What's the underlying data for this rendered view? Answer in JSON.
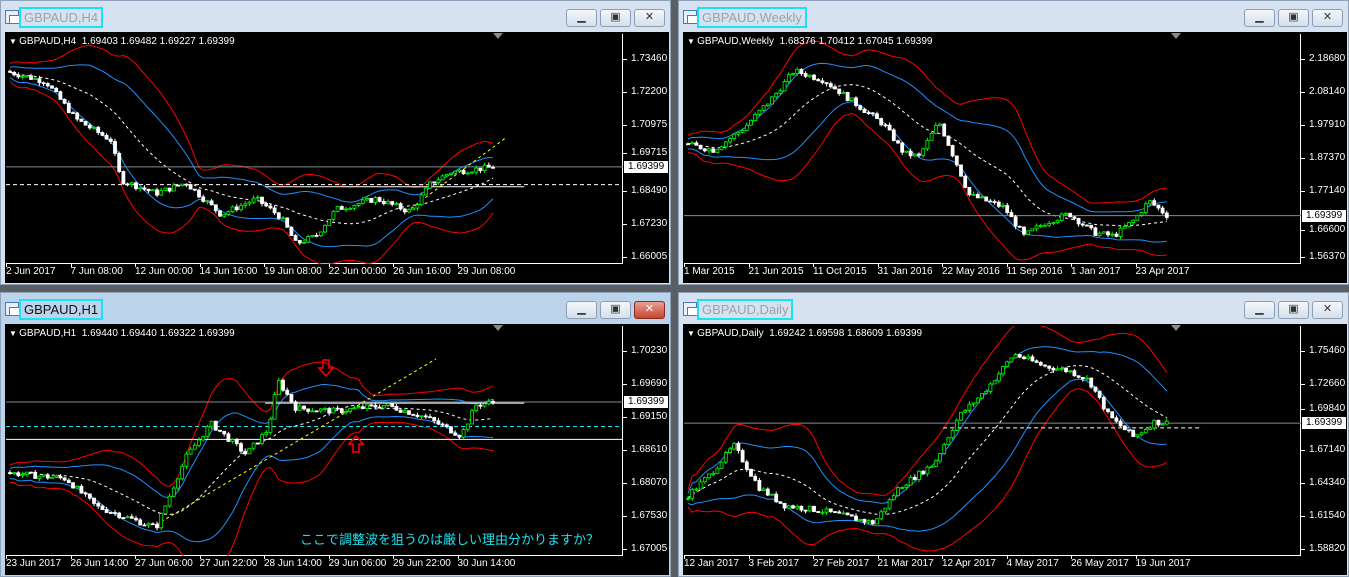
{
  "price_label": "1.69399",
  "colors": {
    "bull": "#00ff00",
    "bear": "#ffffff",
    "band_outer": "#ff0000",
    "band_inner": "#1e90ff",
    "mid": "#ffffff",
    "trend": "#ffff00",
    "cyan": "#19e3f0",
    "annotation_arrow": "#ff0000"
  },
  "windows": [
    {
      "id": "h4",
      "title": "GBPAUD,H4",
      "active": false,
      "header": "GBPAUD,H4  1.69403 1.69482 1.69227 1.69399",
      "yticks": [
        "1.73460",
        "1.72200",
        "1.70975",
        "1.69715",
        "1.68490",
        "1.67230",
        "1.66005"
      ],
      "ylim": [
        1.66005,
        1.7346
      ],
      "xticks": [
        "2 Jun 2017",
        "7 Jun 08:00",
        "12 Jun 00:00",
        "14 Jun 16:00",
        "19 Jun 08:00",
        "22 Jun 00:00",
        "26 Jun 16:00",
        "29 Jun 08:00"
      ],
      "price_path": [
        [
          0,
          1.73
        ],
        [
          40,
          1.726
        ],
        [
          70,
          1.712
        ],
        [
          105,
          1.704
        ],
        [
          115,
          1.689
        ],
        [
          150,
          1.684
        ],
        [
          180,
          1.688
        ],
        [
          215,
          1.676
        ],
        [
          250,
          1.682
        ],
        [
          275,
          1.675
        ],
        [
          290,
          1.665
        ],
        [
          310,
          1.668
        ],
        [
          330,
          1.678
        ],
        [
          370,
          1.682
        ],
        [
          405,
          1.677
        ],
        [
          425,
          1.688
        ],
        [
          445,
          1.692
        ],
        [
          490,
          1.694
        ]
      ],
      "levels": [
        {
          "value": 1.6873,
          "style": "dash-white"
        },
        {
          "value": 1.6865,
          "style": "solid-white-short"
        }
      ],
      "trend": [
        [
          400,
          1.677
        ],
        [
          500,
          1.705
        ]
      ]
    },
    {
      "id": "weekly",
      "title": "GBPAUD,Weekly",
      "active": false,
      "header": "GBPAUD,Weekly  1.68376 1.70412 1.67045 1.69399",
      "yticks": [
        "2.18680",
        "2.08140",
        "1.97910",
        "1.87370",
        "1.77140",
        "1.66600",
        "1.56370"
      ],
      "ylim": [
        1.5637,
        2.1868
      ],
      "xticks": [
        "1 Mar 2015",
        "21 Jun 2015",
        "11 Oct 2015",
        "31 Jan 2016",
        "22 May 2016",
        "11 Sep 2016",
        "1 Jan 2017",
        "23 Apr 2017"
      ],
      "price_path": [
        [
          0,
          1.92
        ],
        [
          30,
          1.9
        ],
        [
          60,
          1.97
        ],
        [
          90,
          2.07
        ],
        [
          110,
          2.15
        ],
        [
          140,
          2.12
        ],
        [
          170,
          2.05
        ],
        [
          200,
          1.98
        ],
        [
          220,
          1.89
        ],
        [
          235,
          1.88
        ],
        [
          255,
          1.99
        ],
        [
          275,
          1.84
        ],
        [
          285,
          1.76
        ],
        [
          320,
          1.72
        ],
        [
          340,
          1.63
        ],
        [
          360,
          1.67
        ],
        [
          385,
          1.7
        ],
        [
          410,
          1.64
        ],
        [
          430,
          1.63
        ],
        [
          450,
          1.68
        ],
        [
          465,
          1.74
        ],
        [
          485,
          1.69
        ]
      ],
      "levels": [],
      "trend": []
    },
    {
      "id": "h1",
      "title": "GBPAUD,H1",
      "active": true,
      "header": "GBPAUD,H1  1.69440 1.69440 1.69322 1.69399",
      "yticks": [
        "1.70230",
        "1.69690",
        "1.69150",
        "1.68610",
        "1.68070",
        "1.67530",
        "1.67005"
      ],
      "ylim": [
        1.67005,
        1.7023
      ],
      "xticks": [
        "23 Jun 2017",
        "26 Jun 14:00",
        "27 Jun 06:00",
        "27 Jun 22:00",
        "28 Jun 14:00",
        "29 Jun 06:00",
        "29 Jun 22:00",
        "30 Jun 14:00"
      ],
      "price_path": [
        [
          0,
          1.6825
        ],
        [
          60,
          1.6815
        ],
        [
          90,
          1.677
        ],
        [
          150,
          1.6735
        ],
        [
          180,
          1.685
        ],
        [
          205,
          1.6905
        ],
        [
          240,
          1.6855
        ],
        [
          262,
          1.6895
        ],
        [
          272,
          1.6975
        ],
        [
          290,
          1.693
        ],
        [
          330,
          1.6925
        ],
        [
          380,
          1.6935
        ],
        [
          420,
          1.6915
        ],
        [
          455,
          1.6885
        ],
        [
          470,
          1.6935
        ],
        [
          490,
          1.694
        ]
      ],
      "levels": [
        {
          "value": 1.69,
          "style": "dash-cyan"
        },
        {
          "value": 1.6879,
          "style": "solid-white"
        },
        {
          "value": 1.6938,
          "style": "solid-white-short"
        }
      ],
      "trend": [
        [
          150,
          1.674
        ],
        [
          430,
          1.701
        ]
      ],
      "annotation": "ここで調整波を狙うのは厳しい理由分かりますか？"
    },
    {
      "id": "daily",
      "title": "GBPAUD,Daily",
      "active": false,
      "header": "GBPAUD,Daily  1.69242 1.69598 1.68609 1.69399",
      "yticks": [
        "1.75460",
        "1.72660",
        "1.69840",
        "1.67140",
        "1.64340",
        "1.61540",
        "1.58820"
      ],
      "ylim": [
        1.5882,
        1.7546
      ],
      "xticks": [
        "12 Jan 2017",
        "3 Feb 2017",
        "27 Feb 2017",
        "21 Mar 2017",
        "12 Apr 2017",
        "4 May 2017",
        "26 May 2017",
        "19 Jun 2017"
      ],
      "price_path": [
        [
          0,
          1.63
        ],
        [
          25,
          1.65
        ],
        [
          50,
          1.675
        ],
        [
          75,
          1.64
        ],
        [
          100,
          1.625
        ],
        [
          140,
          1.62
        ],
        [
          190,
          1.61
        ],
        [
          215,
          1.64
        ],
        [
          250,
          1.66
        ],
        [
          275,
          1.7
        ],
        [
          300,
          1.72
        ],
        [
          330,
          1.752
        ],
        [
          360,
          1.742
        ],
        [
          385,
          1.738
        ],
        [
          405,
          1.73
        ],
        [
          425,
          1.7
        ],
        [
          450,
          1.682
        ],
        [
          470,
          1.695
        ],
        [
          485,
          1.694
        ]
      ],
      "levels": [
        {
          "value": 1.69,
          "style": "dash-white-short"
        }
      ],
      "trend": []
    }
  ]
}
